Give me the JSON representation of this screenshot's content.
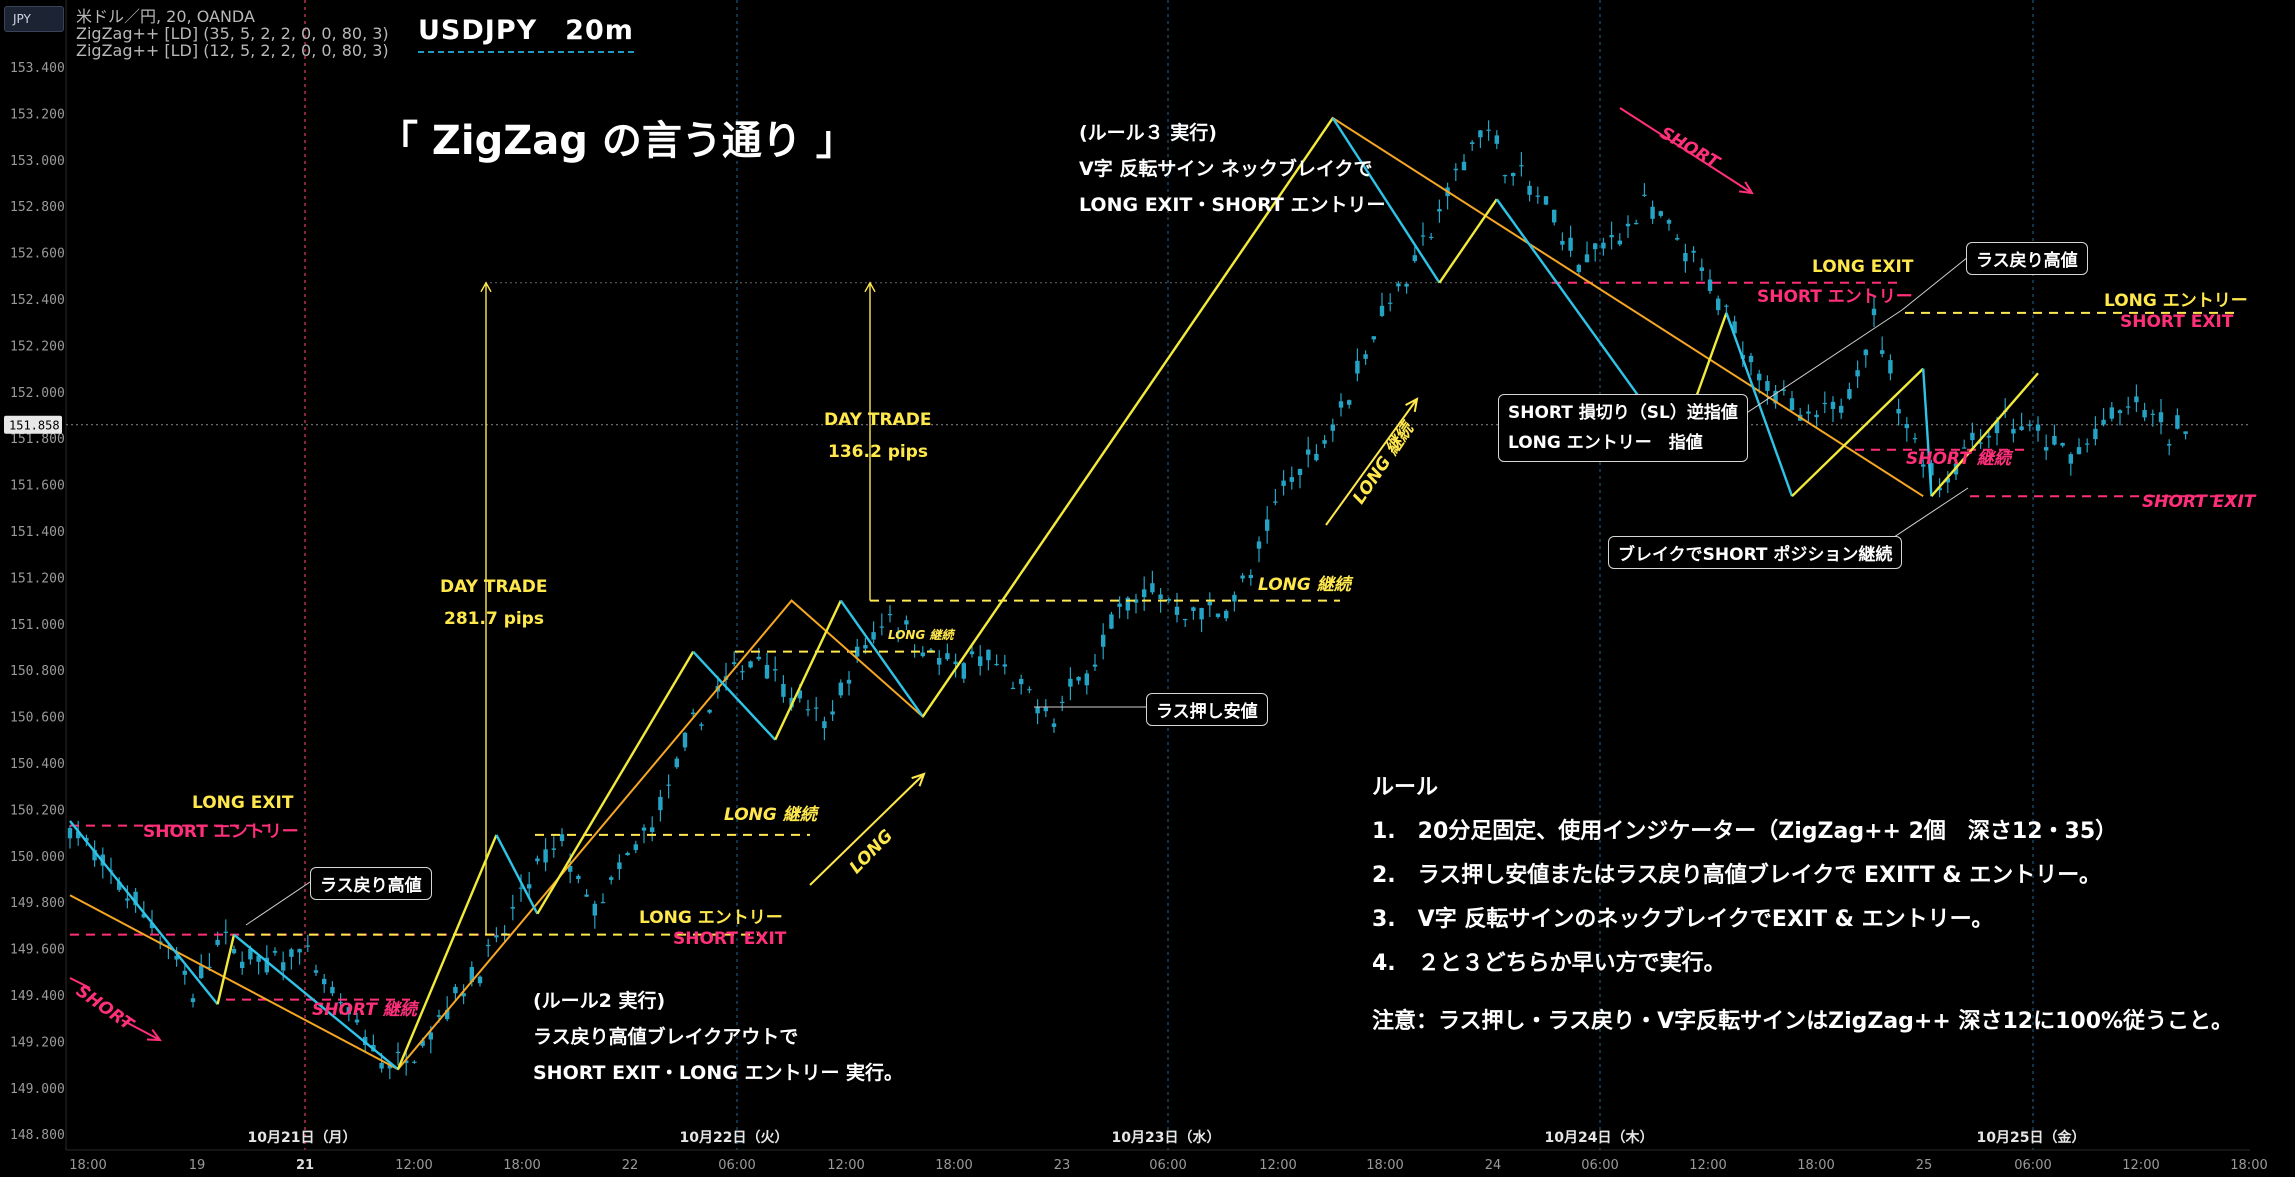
{
  "header": {
    "symbol_badge": "JPY",
    "title": "USDJPY　20m",
    "legend": [
      "米ドル／円, 20, OANDA",
      "ZigZag++ [LD] (35, 5, 2, 2, 0, 0, 80, 3)",
      "ZigZag++ [LD] (12, 5, 2, 2, 0, 0, 80, 3)"
    ],
    "headline": "「 ZigZag の言う通り 」"
  },
  "colors": {
    "bg": "#000000",
    "candle": "#24a3c4",
    "zigzag_35": "#f5a623",
    "zigzag_12_up": "#f2ea3a",
    "zigzag_12_down": "#2ec4e8",
    "exit_line": "#ff2f7a",
    "entry_line": "#ffe84c"
  },
  "notes": {
    "rule3": [
      "(ルール３ 実行)",
      "V字 反転サイン ネックブレイクで",
      "LONG EXIT・SHORT エントリー"
    ],
    "rule2": [
      "(ルール2 実行)",
      "ラス戻り高値ブレイクアウトで",
      "SHORT EXIT・LONG エントリー 実行。"
    ],
    "day_trade_1": [
      "DAY TRADE",
      "281.7 pips"
    ],
    "day_trade_2": [
      "DAY TRADE",
      "136.2 pips"
    ]
  },
  "rules": {
    "heading": "ルール",
    "items": [
      "1.　20分足固定、使用インジケーター（ZigZag++ 2個　深さ12・35）",
      "2.　ラス押し安値またはラス戻り高値ブレイクで EXITT & エントリー。",
      "3.　V字 反転サインのネックブレイクでEXIT & エントリー。",
      "4.　２と３どちらか早い方で実行。"
    ],
    "caution": "注意：ラス押し・ラス戻り・V字反転サインはZigZag++ 深さ12に100%従うこと。"
  },
  "callouts": {
    "las_modori_1": "ラス戻り高値",
    "las_oshi": "ラス押し安値",
    "las_modori_2": "ラス戻り高値",
    "short_sl_1": "SHORT  損切り（SL）逆指値",
    "short_sl_2": "LONG エントリー　指値",
    "break_short": "ブレイクでSHORT ポジション継続"
  },
  "labels": {
    "long_exit_1": "LONG EXIT",
    "short_entry_1": "SHORT エントリー",
    "short_cont_1": "SHORT",
    "short_keizoku_1": "SHORT 継続",
    "long_entry_1": "LONG エントリー",
    "short_exit_1": "SHORT EXIT",
    "long_keizoku_1": "LONG 継続",
    "long_arrow_1": "LONG",
    "long_keizoku_2": "LONG 継続",
    "long_keizoku_3": "LONG 継続",
    "long_keizoku_4": "LONG 継続",
    "short_arrow_2": "SHORT",
    "long_exit_2": "LONG EXIT",
    "short_entry_2": "SHORT エントリー",
    "long_entry_2": "LONG エントリー",
    "short_exit_2": "SHORT EXIT",
    "short_keizoku_2": "SHORT 継続",
    "short_exit_3": "SHORT EXIT"
  },
  "chart_data": {
    "type": "candlestick",
    "symbol": "USDJPY",
    "timeframe": "20m",
    "ylim": [
      148.7,
      153.4
    ],
    "y_ticks": [
      153.4,
      153.2,
      153.0,
      152.8,
      152.6,
      152.4,
      152.2,
      152.0,
      151.8,
      151.6,
      151.4,
      151.2,
      151.0,
      150.8,
      150.6,
      150.4,
      150.2,
      150.0,
      149.8,
      149.6,
      149.4,
      149.2,
      149.0,
      148.8
    ],
    "y_tick_labels": [
      "153.400",
      "153.200",
      "153.000",
      "152.800",
      "152.600",
      "152.400",
      "152.200",
      "152.000",
      "151.800",
      "151.600",
      "151.400",
      "151.200",
      "151.000",
      "150.800",
      "150.600",
      "150.400",
      "150.200",
      "150.000",
      "149.800",
      "149.600",
      "149.400",
      "149.200",
      "149.000",
      "148.800"
    ],
    "current_price": 151.858,
    "current_price_label": "151.858",
    "x_ticks": [
      "18:00",
      "19",
      "21",
      "12:00",
      "18:00",
      "22",
      "06:00",
      "12:00",
      "18:00",
      "23",
      "06:00",
      "12:00",
      "18:00",
      "24",
      "06:00",
      "12:00",
      "18:00",
      "25",
      "06:00",
      "12:00",
      "18:00"
    ],
    "date_labels": [
      "10月21日（月）",
      "10月22日（火）",
      "10月23日（水）",
      "10月24日（木）",
      "10月25日（金）"
    ],
    "price_path": [
      [
        0,
        150.13
      ],
      [
        4,
        149.95
      ],
      [
        8,
        149.8
      ],
      [
        12,
        149.62
      ],
      [
        15,
        149.4
      ],
      [
        18,
        149.63
      ],
      [
        24,
        149.52
      ],
      [
        28,
        149.6
      ],
      [
        33,
        149.35
      ],
      [
        38,
        149.12
      ],
      [
        40,
        149.1
      ],
      [
        44,
        149.25
      ],
      [
        48,
        149.45
      ],
      [
        52,
        149.6
      ],
      [
        56,
        149.9
      ],
      [
        60,
        150.05
      ],
      [
        64,
        149.75
      ],
      [
        68,
        149.98
      ],
      [
        72,
        150.2
      ],
      [
        76,
        150.55
      ],
      [
        80,
        150.75
      ],
      [
        84,
        150.88
      ],
      [
        88,
        150.7
      ],
      [
        92,
        150.55
      ],
      [
        96,
        150.85
      ],
      [
        100,
        151.05
      ],
      [
        104,
        150.9
      ],
      [
        108,
        150.8
      ],
      [
        112,
        150.85
      ],
      [
        116,
        150.7
      ],
      [
        120,
        150.6
      ],
      [
        124,
        150.8
      ],
      [
        128,
        151.05
      ],
      [
        132,
        151.15
      ],
      [
        136,
        151.05
      ],
      [
        140,
        151.05
      ],
      [
        144,
        151.2
      ],
      [
        148,
        151.6
      ],
      [
        152,
        151.75
      ],
      [
        156,
        152.0
      ],
      [
        160,
        152.35
      ],
      [
        164,
        152.55
      ],
      [
        168,
        152.85
      ],
      [
        172,
        153.15
      ],
      [
        176,
        152.95
      ],
      [
        180,
        152.8
      ],
      [
        184,
        152.55
      ],
      [
        188,
        152.65
      ],
      [
        192,
        152.8
      ],
      [
        196,
        152.65
      ],
      [
        200,
        152.45
      ],
      [
        204,
        152.2
      ],
      [
        208,
        152.0
      ],
      [
        212,
        151.85
      ],
      [
        216,
        151.95
      ],
      [
        220,
        152.3
      ],
      [
        224,
        151.85
      ],
      [
        228,
        151.6
      ],
      [
        232,
        151.8
      ],
      [
        236,
        151.88
      ],
      [
        240,
        151.8
      ],
      [
        244,
        151.72
      ],
      [
        248,
        151.85
      ],
      [
        252,
        151.95
      ],
      [
        256,
        151.82
      ],
      [
        258,
        151.86
      ]
    ],
    "zigzag_35": [
      [
        0,
        149.83
      ],
      [
        40,
        149.08
      ],
      [
        88,
        151.1
      ],
      [
        104,
        150.6
      ],
      [
        154,
        153.18
      ],
      [
        226,
        151.55
      ]
    ],
    "zigzag_12": [
      [
        0,
        150.15
      ],
      [
        18,
        149.36
      ],
      [
        20,
        149.66
      ],
      [
        40,
        149.08
      ],
      [
        52,
        150.09
      ],
      [
        57,
        149.75
      ],
      [
        76,
        150.88
      ],
      [
        86,
        150.5
      ],
      [
        94,
        151.1
      ],
      [
        104,
        150.6
      ],
      [
        154,
        153.18
      ],
      [
        167,
        152.47
      ],
      [
        174,
        152.83
      ],
      [
        196,
        151.75
      ],
      [
        202,
        152.34
      ],
      [
        210,
        151.55
      ],
      [
        226,
        152.1
      ],
      [
        227,
        151.55
      ],
      [
        240,
        152.08
      ]
    ]
  }
}
